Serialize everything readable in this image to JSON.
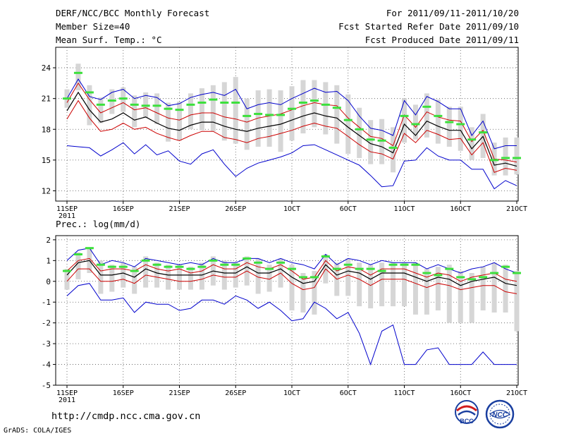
{
  "header": {
    "title": "DERF/NCC/BCC Monthly Forecast",
    "member": "Member Size=40",
    "var1": "Mean Surf. Temp.: °C",
    "period": "For 2011/09/11-2011/10/20",
    "refer": "Fcst Started Refer Date 2011/09/10",
    "produced": "Fcst Produced Date 2011/09/11"
  },
  "footer": {
    "url": "http://cmdp.ncc.cma.gov.cn",
    "credit": "GrADS: COLA/IGES",
    "logo_left": "BCC",
    "logo_right": "NCC"
  },
  "colors": {
    "ensemble_mean": "#000000",
    "spread": "#cc0000",
    "extremes": "#0000cc",
    "members": "#3ce03c",
    "boxes": "#d6d6d6"
  },
  "chart_data": [
    {
      "type": "line",
      "title": "Mean Surf. Temp.: °C",
      "x_day_count": 40,
      "xticks": [
        {
          "day": 0,
          "label": "11SEP",
          "sub": "2011"
        },
        {
          "day": 5,
          "label": "16SEP",
          "sub": ""
        },
        {
          "day": 10,
          "label": "21SEP",
          "sub": ""
        },
        {
          "day": 15,
          "label": "26SEP",
          "sub": ""
        },
        {
          "day": 20,
          "label": "1OCT",
          "sub": ""
        },
        {
          "day": 25,
          "label": "6OCT",
          "sub": ""
        },
        {
          "day": 30,
          "label": "11OCT",
          "sub": ""
        },
        {
          "day": 35,
          "label": "16OCT",
          "sub": ""
        },
        {
          "day": 40,
          "label": "21OCT",
          "sub": ""
        }
      ],
      "ylim": [
        11,
        26
      ],
      "yticks": [
        12,
        15,
        18,
        21,
        24
      ],
      "series": [
        {
          "name": "max",
          "role": "extremes",
          "values": [
            21.0,
            22.9,
            21.2,
            20.9,
            21.6,
            21.9,
            21.0,
            21.3,
            21.1,
            20.3,
            20.5,
            21.1,
            21.4,
            21.6,
            21.3,
            21.9,
            20.0,
            20.4,
            20.6,
            20.4,
            21.0,
            21.5,
            22.0,
            21.6,
            21.7,
            20.8,
            19.3,
            18.1,
            17.9,
            17.4,
            20.8,
            19.4,
            21.2,
            20.7,
            20.0,
            20.0,
            17.4,
            18.8,
            16.1,
            16.4,
            16.4
          ]
        },
        {
          "name": "upper",
          "role": "spread",
          "values": [
            20.6,
            22.5,
            20.9,
            19.6,
            20.1,
            20.6,
            19.9,
            20.1,
            19.6,
            19.1,
            18.9,
            19.4,
            19.6,
            19.6,
            19.2,
            19.0,
            18.7,
            19.1,
            19.3,
            19.5,
            19.9,
            20.3,
            20.6,
            20.4,
            20.3,
            19.1,
            18.2,
            17.3,
            17.1,
            16.4,
            19.4,
            18.2,
            19.7,
            19.2,
            18.9,
            18.8,
            16.8,
            17.9,
            15.1,
            15.0,
            14.8
          ]
        },
        {
          "name": "mean",
          "role": "ensemble_mean",
          "values": [
            19.8,
            21.6,
            19.9,
            18.7,
            19.0,
            19.6,
            18.9,
            19.2,
            18.6,
            18.1,
            17.9,
            18.4,
            18.7,
            18.7,
            18.3,
            18.0,
            17.8,
            18.1,
            18.3,
            18.5,
            18.9,
            19.3,
            19.6,
            19.3,
            19.1,
            18.2,
            17.4,
            16.6,
            16.3,
            15.7,
            18.5,
            17.4,
            18.8,
            18.3,
            17.9,
            17.9,
            16.1,
            17.3,
            14.5,
            14.7,
            14.4
          ]
        },
        {
          "name": "lower",
          "role": "spread",
          "values": [
            19.0,
            20.8,
            19.1,
            17.8,
            18.0,
            18.6,
            18.0,
            18.2,
            17.6,
            17.2,
            16.9,
            17.4,
            17.8,
            17.8,
            17.2,
            17.0,
            16.7,
            17.1,
            17.3,
            17.6,
            17.9,
            18.3,
            18.6,
            18.3,
            18.1,
            17.3,
            16.5,
            15.8,
            15.6,
            15.1,
            17.6,
            16.7,
            17.9,
            17.5,
            17.0,
            17.1,
            15.5,
            16.7,
            13.8,
            14.2,
            14.0
          ]
        },
        {
          "name": "min",
          "role": "extremes",
          "values": [
            16.4,
            16.3,
            16.2,
            15.4,
            16.0,
            16.7,
            15.6,
            16.5,
            15.5,
            15.9,
            14.9,
            14.6,
            15.6,
            16.0,
            14.6,
            13.4,
            14.2,
            14.7,
            15.0,
            15.3,
            15.7,
            16.4,
            16.5,
            16.0,
            15.5,
            15.0,
            14.5,
            13.5,
            12.4,
            12.5,
            14.9,
            15.0,
            16.2,
            15.4,
            15.0,
            15.0,
            14.1,
            14.1,
            12.2,
            13.0,
            12.5
          ]
        },
        {
          "name": "member_dash",
          "role": "members",
          "values": [
            21.0,
            23.5,
            21.6,
            20.4,
            20.8,
            21.0,
            20.4,
            20.3,
            20.3,
            20.0,
            19.9,
            20.4,
            20.6,
            20.9,
            20.6,
            20.6,
            19.3,
            19.5,
            19.4,
            19.4,
            20.0,
            20.6,
            20.8,
            20.4,
            20.1,
            18.9,
            18.0,
            17.0,
            16.9,
            16.2,
            19.3,
            18.5,
            20.2,
            19.3,
            18.7,
            18.5,
            17.0,
            17.7,
            15.0,
            15.2,
            15.2
          ]
        },
        {
          "name": "box_top",
          "role": "boxes",
          "values": [
            21.9,
            24.4,
            22.3,
            21.1,
            21.9,
            22.1,
            21.3,
            21.6,
            21.5,
            20.6,
            20.7,
            21.5,
            22.0,
            22.3,
            22.6,
            23.1,
            21.0,
            21.8,
            21.9,
            21.8,
            22.2,
            22.8,
            22.8,
            22.6,
            22.3,
            21.4,
            20.1,
            18.9,
            19.0,
            18.2,
            21.0,
            20.4,
            21.5,
            20.9,
            20.2,
            20.2,
            18.2,
            19.5,
            16.7,
            17.2,
            17.2
          ]
        },
        {
          "name": "box_bottom",
          "role": "boxes",
          "values": [
            20.1,
            21.8,
            18.4,
            18.6,
            19.5,
            19.7,
            18.2,
            19.1,
            18.5,
            16.8,
            16.9,
            18.0,
            17.9,
            17.8,
            16.9,
            16.6,
            16.0,
            16.3,
            16.3,
            15.8,
            16.9,
            17.6,
            18.2,
            17.5,
            16.6,
            15.6,
            15.2,
            14.6,
            14.6,
            13.8,
            16.7,
            17.0,
            17.2,
            16.6,
            16.3,
            15.9,
            15.0,
            15.2,
            13.5,
            13.5,
            13.6
          ]
        }
      ]
    },
    {
      "type": "line",
      "title": "Prec.: log(mm/d)",
      "x_day_count": 40,
      "xticks": [
        {
          "day": 0,
          "label": "11SEP",
          "sub": "2011"
        },
        {
          "day": 5,
          "label": "16SEP",
          "sub": ""
        },
        {
          "day": 10,
          "label": "21SEP",
          "sub": ""
        },
        {
          "day": 15,
          "label": "26SEP",
          "sub": ""
        },
        {
          "day": 20,
          "label": "1OCT",
          "sub": ""
        },
        {
          "day": 25,
          "label": "6OCT",
          "sub": ""
        },
        {
          "day": 30,
          "label": "11OCT",
          "sub": ""
        },
        {
          "day": 35,
          "label": "16OCT",
          "sub": ""
        },
        {
          "day": 40,
          "label": "21OCT",
          "sub": ""
        }
      ],
      "ylim": [
        -5,
        2.2
      ],
      "yticks": [
        -5,
        -4,
        -3,
        -2,
        -1,
        0,
        1,
        2
      ],
      "series": [
        {
          "name": "max",
          "role": "extremes",
          "values": [
            1.0,
            1.5,
            1.6,
            0.8,
            1.0,
            0.9,
            0.7,
            1.1,
            1.0,
            0.9,
            0.8,
            0.9,
            0.8,
            1.1,
            0.9,
            0.9,
            1.1,
            1.1,
            0.9,
            1.1,
            0.9,
            0.8,
            0.6,
            1.3,
            0.8,
            1.1,
            1.0,
            0.8,
            1.0,
            0.9,
            0.9,
            0.9,
            0.6,
            0.8,
            0.6,
            0.4,
            0.6,
            0.7,
            0.9,
            0.6,
            0.4
          ]
        },
        {
          "name": "upper",
          "role": "spread",
          "values": [
            0.5,
            1.0,
            1.1,
            0.5,
            0.6,
            0.6,
            0.5,
            0.8,
            0.6,
            0.5,
            0.6,
            0.4,
            0.5,
            0.8,
            0.6,
            0.6,
            0.9,
            0.7,
            0.6,
            0.8,
            0.5,
            0.1,
            0.2,
            1.0,
            0.5,
            0.7,
            0.6,
            0.3,
            0.6,
            0.6,
            0.6,
            0.4,
            0.2,
            0.4,
            0.3,
            0.0,
            0.2,
            0.3,
            0.4,
            0.1,
            0.0
          ]
        },
        {
          "name": "mean",
          "role": "ensemble_mean",
          "values": [
            0.3,
            0.9,
            1.0,
            0.3,
            0.3,
            0.4,
            0.2,
            0.6,
            0.4,
            0.3,
            0.3,
            0.3,
            0.3,
            0.5,
            0.4,
            0.4,
            0.7,
            0.4,
            0.4,
            0.6,
            0.2,
            -0.1,
            0.0,
            0.8,
            0.3,
            0.5,
            0.4,
            0.1,
            0.4,
            0.4,
            0.4,
            0.2,
            0.0,
            0.2,
            0.1,
            -0.2,
            0.0,
            0.1,
            0.2,
            -0.1,
            -0.2
          ]
        },
        {
          "name": "lower",
          "role": "spread",
          "values": [
            0.0,
            0.6,
            0.6,
            0.0,
            0.0,
            0.1,
            -0.1,
            0.3,
            0.2,
            0.1,
            0.0,
            0.0,
            0.1,
            0.3,
            0.2,
            0.2,
            0.5,
            0.2,
            0.1,
            0.4,
            -0.1,
            -0.4,
            -0.3,
            0.6,
            0.1,
            0.3,
            0.1,
            -0.2,
            0.1,
            0.1,
            0.1,
            -0.1,
            -0.3,
            -0.1,
            -0.2,
            -0.4,
            -0.3,
            -0.2,
            -0.2,
            -0.5,
            -0.6
          ]
        },
        {
          "name": "min",
          "role": "extremes",
          "values": [
            -0.7,
            -0.2,
            -0.1,
            -0.9,
            -0.9,
            -0.8,
            -1.5,
            -1.0,
            -1.1,
            -1.1,
            -1.4,
            -1.3,
            -0.9,
            -0.9,
            -1.1,
            -0.7,
            -0.9,
            -1.3,
            -1.0,
            -1.4,
            -1.9,
            -1.8,
            -1.0,
            -1.3,
            -1.8,
            -1.5,
            -2.5,
            -4.0,
            -2.4,
            -2.1,
            -4.0,
            -4.0,
            -3.3,
            -3.2,
            -4.0,
            -4.0,
            -4.0,
            -3.4,
            -4.0,
            -4.0,
            -4.0
          ]
        },
        {
          "name": "member_dash",
          "role": "members",
          "values": [
            0.5,
            1.3,
            1.6,
            0.8,
            0.7,
            0.7,
            0.5,
            1.0,
            0.8,
            0.7,
            0.7,
            0.6,
            0.7,
            1.0,
            0.8,
            0.8,
            1.1,
            0.9,
            0.6,
            0.9,
            0.6,
            0.2,
            0.2,
            1.2,
            0.6,
            0.8,
            0.6,
            0.6,
            0.5,
            0.8,
            0.8,
            0.8,
            0.4,
            0.3,
            0.6,
            0.2,
            0.1,
            0.2,
            0.4,
            0.7,
            0.4
          ]
        },
        {
          "name": "box_top",
          "role": "boxes",
          "values": [
            0.6,
            1.4,
            1.6,
            1.0,
            0.8,
            0.9,
            0.7,
            1.2,
            0.9,
            0.8,
            0.8,
            0.7,
            0.9,
            1.2,
            1.0,
            0.9,
            1.2,
            1.1,
            0.8,
            1.1,
            0.8,
            0.4,
            0.5,
            1.3,
            0.9,
            1.1,
            0.9,
            0.8,
            0.9,
            0.9,
            0.9,
            0.9,
            0.6,
            0.7,
            0.8,
            0.5,
            0.4,
            0.7,
            0.9,
            0.8,
            0.5
          ]
        },
        {
          "name": "box_bottom",
          "role": "boxes",
          "values": [
            -0.4,
            0.1,
            0.4,
            -0.6,
            -0.5,
            -0.3,
            -0.6,
            -0.3,
            -0.3,
            -0.4,
            -0.4,
            -0.4,
            -0.4,
            -0.2,
            -0.4,
            -0.3,
            -0.2,
            -0.6,
            -0.5,
            -0.3,
            -1.4,
            -1.5,
            -1.6,
            -0.1,
            -0.7,
            -0.7,
            -1.2,
            -1.3,
            -1.2,
            -1.2,
            -1.2,
            -1.6,
            -1.6,
            -1.4,
            -2.0,
            -2.0,
            -2.0,
            -1.4,
            -1.5,
            -1.5,
            -2.4
          ]
        }
      ]
    }
  ]
}
